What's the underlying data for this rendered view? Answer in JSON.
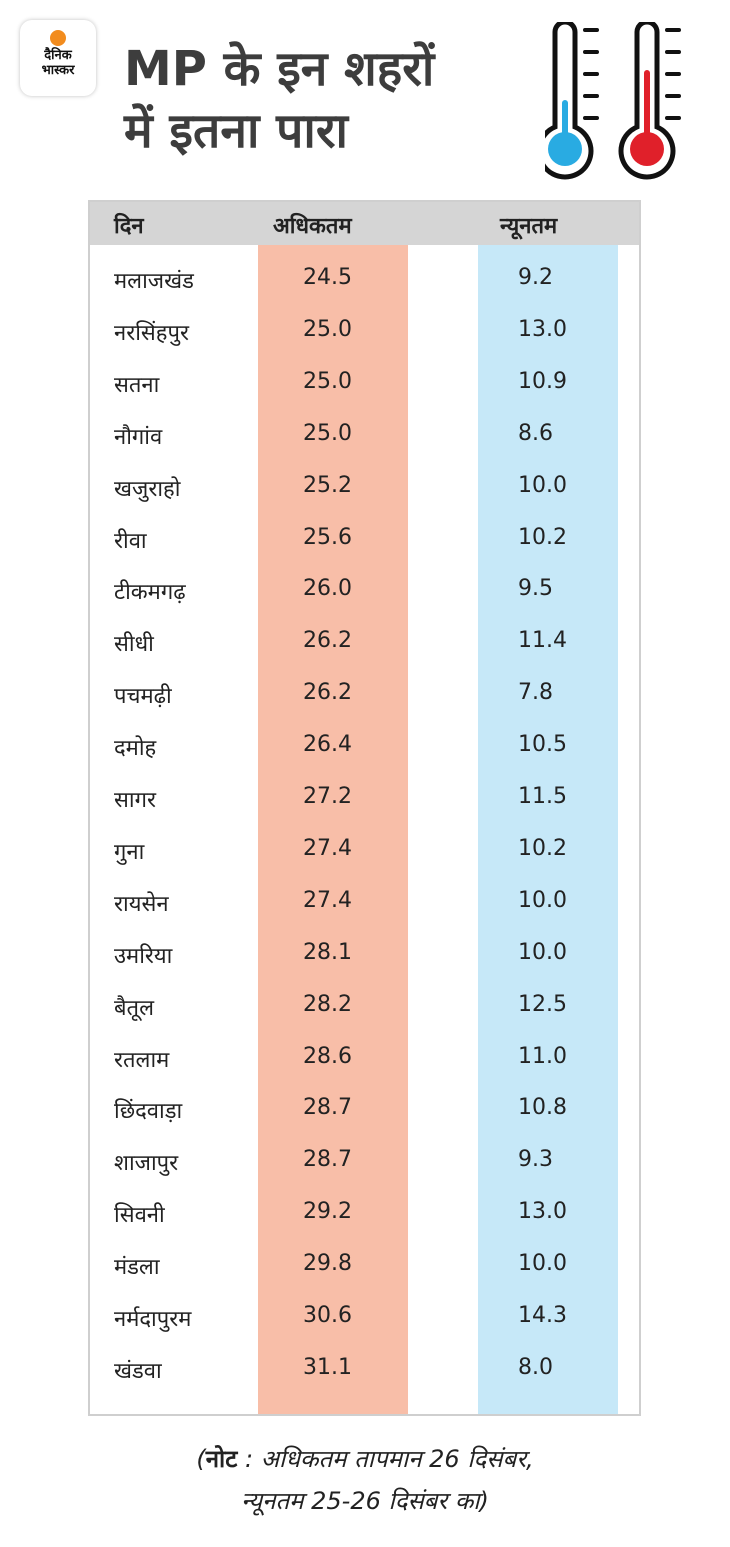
{
  "logo": {
    "line1": "दैनिक",
    "line2": "भास्कर",
    "dot_color": "#f28c1e"
  },
  "title": {
    "line1": "MP के इन शहरों",
    "line2": "में इतना पारा"
  },
  "icons": [
    "thermometer-cold-icon",
    "thermometer-hot-icon"
  ],
  "colors": {
    "max_column": "#f8bea8",
    "min_column": "#c6e8f8",
    "header": "#d5d5d5",
    "cold": "#29abe2",
    "hot": "#e0202a"
  },
  "chart_data": {
    "type": "table",
    "columns": [
      "दिन",
      "अधिकतम",
      "न्यूनतम"
    ],
    "rows": [
      [
        "मलाजखंड",
        "24.5",
        "9.2"
      ],
      [
        "नरसिंहपुर",
        "25.0",
        "13.0"
      ],
      [
        "सतना",
        "25.0",
        "10.9"
      ],
      [
        "नौगांव",
        "25.0",
        "8.6"
      ],
      [
        "खजुराहो",
        "25.2",
        "10.0"
      ],
      [
        "रीवा",
        "25.6",
        "10.2"
      ],
      [
        "टीकमगढ़",
        "26.0",
        "9.5"
      ],
      [
        "सीधी",
        "26.2",
        "11.4"
      ],
      [
        "पचमढ़ी",
        "26.2",
        "7.8"
      ],
      [
        "दमोह",
        "26.4",
        "10.5"
      ],
      [
        "सागर",
        "27.2",
        "11.5"
      ],
      [
        "गुना",
        "27.4",
        "10.2"
      ],
      [
        "रायसेन",
        "27.4",
        "10.0"
      ],
      [
        "उमरिया",
        "28.1",
        "10.0"
      ],
      [
        "बैतूल",
        "28.2",
        "12.5"
      ],
      [
        "रतलाम",
        "28.6",
        "11.0"
      ],
      [
        "छिंदवाड़ा",
        "28.7",
        "10.8"
      ],
      [
        "शाजापुर",
        "28.7",
        "9.3"
      ],
      [
        "सिवनी",
        "29.2",
        "13.0"
      ],
      [
        "मंडला",
        "29.8",
        "10.0"
      ],
      [
        "नर्मदापुरम",
        "30.6",
        "14.3"
      ],
      [
        "खंडवा",
        "31.1",
        "8.0"
      ]
    ]
  },
  "note": {
    "bold": "नोट",
    "line1": " : अधिकतम तापमान 26 दिसंबर,",
    "line2": "न्यूनतम 25-26 दिसंबर का)"
  }
}
